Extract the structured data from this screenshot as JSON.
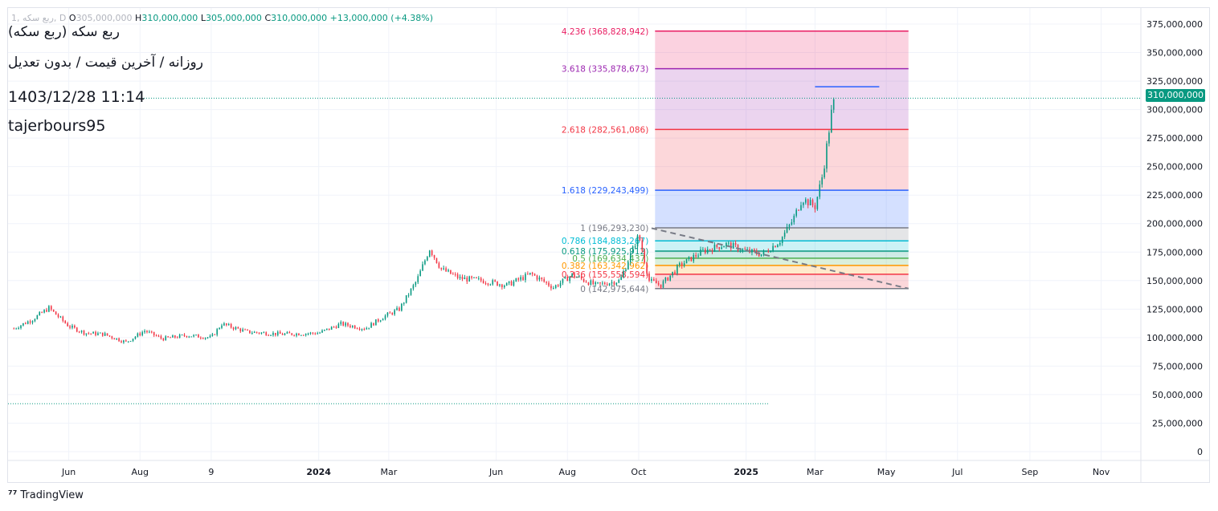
{
  "header": {
    "symbol_code": "1, ربع سکه, D",
    "open_label": "O",
    "open": "305,000,000",
    "high_label": "H",
    "high": "310,000,000",
    "low_label": "L",
    "low": "305,000,000",
    "close_label": "C",
    "close": "310,000,000",
    "change": "+13,000,000 (+4.38%)"
  },
  "titles": {
    "line1": "ربع سکه (ربع سکه)",
    "line2": "روزانه / آخرین قیمت / بدون تعدیل",
    "timestamp": "1403/12/28 11:14",
    "author": "tajerbours95"
  },
  "last_price_label": "310,000,000",
  "branding": {
    "logo_text": "TradingView"
  },
  "colors": {
    "up": "#089981",
    "down": "#f23645",
    "grid": "#f0f3fa",
    "fib_0": "#787b86",
    "fib_0236": "#f23645",
    "fib_0382": "#ff9800",
    "fib_05": "#4caf50",
    "fib_0618": "#089981",
    "fib_0786": "#00bcd4",
    "fib_1": "#787b86",
    "fib_1618": "#2962ff",
    "fib_2618": "#f23645",
    "fib_3618": "#9c27b0",
    "fib_4236": "#e91e63"
  },
  "chart_data": {
    "type": "line",
    "subtype": "candlestick",
    "ylim": [
      0,
      375000000
    ],
    "y_ticks": [
      "375,000,000",
      "350,000,000",
      "325,000,000",
      "300,000,000",
      "275,000,000",
      "250,000,000",
      "225,000,000",
      "200,000,000",
      "175,000,000",
      "150,000,000",
      "125,000,000",
      "100,000,000",
      "75,000,000",
      "50,000,000",
      "25,000,000",
      "0"
    ],
    "y_tick_values": [
      375000000,
      350000000,
      325000000,
      300000000,
      275000000,
      250000000,
      225000000,
      200000000,
      175000000,
      150000000,
      125000000,
      100000000,
      75000000,
      50000000,
      25000000,
      0
    ],
    "x_ticks": [
      {
        "label": "Jun",
        "bold": false,
        "date": "2023-06-01"
      },
      {
        "label": "Aug",
        "bold": false,
        "date": "2023-08-01"
      },
      {
        "label": "9",
        "bold": false,
        "date": "2023-10-01"
      },
      {
        "label": "2024",
        "bold": true,
        "date": "2024-01-01"
      },
      {
        "label": "Mar",
        "bold": false,
        "date": "2024-03-01"
      },
      {
        "label": "Jun",
        "bold": false,
        "date": "2024-06-01"
      },
      {
        "label": "Aug",
        "bold": false,
        "date": "2024-08-01"
      },
      {
        "label": "Oct",
        "bold": false,
        "date": "2024-10-01"
      },
      {
        "label": "2025",
        "bold": true,
        "date": "2025-01-01"
      },
      {
        "label": "Mar",
        "bold": false,
        "date": "2025-03-01"
      },
      {
        "label": "May",
        "bold": false,
        "date": "2025-05-01"
      },
      {
        "label": "Jul",
        "bold": false,
        "date": "2025-07-01"
      },
      {
        "label": "Sep",
        "bold": false,
        "date": "2025-09-01"
      },
      {
        "label": "Nov",
        "bold": false,
        "date": "2025-11-01"
      }
    ],
    "series": [
      {
        "values_approx_close": [
          [
            "2023-04-15",
            108000000
          ],
          [
            "2023-05-01",
            116000000
          ],
          [
            "2023-05-15",
            126000000
          ],
          [
            "2023-06-01",
            110000000
          ],
          [
            "2023-06-15",
            104000000
          ],
          [
            "2023-07-01",
            103000000
          ],
          [
            "2023-07-20",
            96000000
          ],
          [
            "2023-08-05",
            106000000
          ],
          [
            "2023-08-20",
            99000000
          ],
          [
            "2023-09-10",
            102000000
          ],
          [
            "2023-10-01",
            100000000
          ],
          [
            "2023-10-10",
            112000000
          ],
          [
            "2023-11-01",
            105000000
          ],
          [
            "2023-12-01",
            103000000
          ],
          [
            "2024-01-01",
            104000000
          ],
          [
            "2024-01-20",
            112000000
          ],
          [
            "2024-02-10",
            108000000
          ],
          [
            "2024-02-25",
            118000000
          ],
          [
            "2024-03-10",
            125000000
          ],
          [
            "2024-03-25",
            150000000
          ],
          [
            "2024-04-05",
            178000000
          ],
          [
            "2024-04-15",
            160000000
          ],
          [
            "2024-05-01",
            152000000
          ],
          [
            "2024-05-20",
            150000000
          ],
          [
            "2024-06-10",
            146000000
          ],
          [
            "2024-07-01",
            156000000
          ],
          [
            "2024-07-20",
            144000000
          ],
          [
            "2024-08-05",
            155000000
          ],
          [
            "2024-08-25",
            146000000
          ],
          [
            "2024-09-15",
            150000000
          ],
          [
            "2024-10-01",
            190000000
          ],
          [
            "2024-10-10",
            150000000
          ],
          [
            "2024-10-20",
            146000000
          ],
          [
            "2024-11-05",
            163000000
          ],
          [
            "2024-11-25",
            176000000
          ],
          [
            "2024-12-15",
            182000000
          ],
          [
            "2025-01-01",
            176000000
          ],
          [
            "2025-01-15",
            173000000
          ],
          [
            "2025-01-30",
            185000000
          ],
          [
            "2025-02-10",
            203000000
          ],
          [
            "2025-02-18",
            222000000
          ],
          [
            "2025-03-01",
            215000000
          ],
          [
            "2025-03-08",
            245000000
          ],
          [
            "2025-03-12",
            275000000
          ],
          [
            "2025-03-15",
            297000000
          ],
          [
            "2025-03-18",
            310000000
          ]
        ]
      }
    ],
    "last_price": 310000000,
    "fibonacci_extension": [
      {
        "level": "0",
        "price": "142,975,644",
        "value": 142975644,
        "color_key": "fib_0"
      },
      {
        "level": "0.236",
        "price": "155,558,594",
        "value": 155558594,
        "color_key": "fib_0236"
      },
      {
        "level": "0.382",
        "price": "163,342,962",
        "value": 163342962,
        "color_key": "fib_0382"
      },
      {
        "level": "0.5",
        "price": "169,634,437",
        "value": 169634437,
        "color_key": "fib_05"
      },
      {
        "level": "0.618",
        "price": "175,925,912",
        "value": 175925912,
        "color_key": "fib_0618"
      },
      {
        "level": "0.786",
        "price": "184,883,267",
        "value": 184883267,
        "color_key": "fib_0786"
      },
      {
        "level": "1",
        "price": "196,293,230",
        "value": 196293230,
        "color_key": "fib_1"
      },
      {
        "level": "1.618",
        "price": "229,243,499",
        "value": 229243499,
        "color_key": "fib_1618"
      },
      {
        "level": "2.618",
        "price": "282,561,086",
        "value": 282561086,
        "color_key": "fib_2618"
      },
      {
        "level": "3.618",
        "price": "335,878,673",
        "value": 335878673,
        "color_key": "fib_3618"
      },
      {
        "level": "4.236",
        "price": "368,828,942",
        "value": 368828942,
        "color_key": "fib_4236"
      }
    ],
    "fib_range": {
      "start": "2024-10-15",
      "end": "2025-05-20"
    },
    "trendline_dashed": {
      "start": [
        "2024-10-12",
        196000000
      ],
      "end": [
        "2025-05-20",
        143000000
      ]
    },
    "target_line": {
      "start": [
        "2025-03-01",
        320000000
      ],
      "end": [
        "2025-04-25",
        320000000
      ]
    },
    "reference_dotted_line": {
      "start": "2023-04-10",
      "end": "2025-01-20",
      "value": 42000000
    },
    "x_range": [
      "2023-04-10",
      "2025-12-05"
    ],
    "grid": true
  }
}
